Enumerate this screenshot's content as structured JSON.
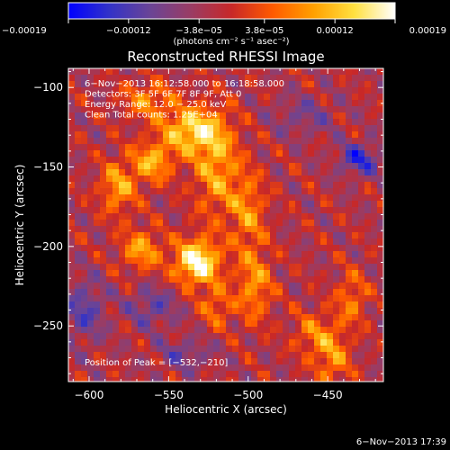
{
  "chart_data": {
    "type": "heatmap",
    "title": "Reconstructed RHESSI Image",
    "xlabel": "Heliocentric X (arcsec)",
    "ylabel": "Heliocentric Y (arcsec)",
    "xlim": [
      -613,
      -415
    ],
    "ylim": [
      -285,
      -88
    ],
    "xticks": [
      {
        "value": -600,
        "label": "−600"
      },
      {
        "value": -550,
        "label": "−550"
      },
      {
        "value": -500,
        "label": "−500"
      },
      {
        "value": -450,
        "label": "−450"
      }
    ],
    "yticks": [
      {
        "value": -100,
        "label": "−100"
      },
      {
        "value": -150,
        "label": "−150"
      },
      {
        "value": -200,
        "label": "−200"
      },
      {
        "value": -250,
        "label": "−250"
      }
    ],
    "colorbar": {
      "min": -0.00019,
      "max": 0.00019,
      "ticks": [
        {
          "value": -0.00019,
          "label": "−0.00019"
        },
        {
          "value": -0.00012,
          "label": "−0.00012"
        },
        {
          "value": -3.8e-05,
          "label": "−3.8e−05"
        },
        {
          "value": 3.8e-05,
          "label": "3.8e−05"
        },
        {
          "value": 0.00012,
          "label": "0.00012"
        },
        {
          "value": 0.00019,
          "label": "0.00019"
        }
      ],
      "units_label": "(photons cm⁻² s⁻¹ asec⁻²)",
      "colors": [
        "#0000ff",
        "#3232c8",
        "#6a4496",
        "#9a3c64",
        "#c82828",
        "#ff5a00",
        "#ffa000",
        "#ffe040",
        "#ffffff"
      ]
    },
    "info_lines": [
      "6−Nov−2013 16:12:58.000 to 16:18:58.000",
      "Detectors: 3F 5F 6F 7F 8F 9F, Att 0",
      "Energy Range: 12.0 − 25.0 keV",
      "Clean    Total counts: 1.25E+04"
    ],
    "peak": {
      "label": "Position of Peak = [−532,−210]",
      "x": -532,
      "y": -210
    },
    "timestamp": "6−Nov−2013 17:39",
    "sources": [
      {
        "x": -532,
        "y": -210,
        "amp": 1.0,
        "sx": 10,
        "sy": 10
      },
      {
        "x": -536,
        "y": -127,
        "amp": 0.75,
        "sx": 13,
        "sy": 10
      },
      {
        "x": -560,
        "y": -147,
        "amp": 0.6,
        "sx": 9,
        "sy": 9
      },
      {
        "x": -582,
        "y": -163,
        "amp": 0.55,
        "sx": 8,
        "sy": 12
      },
      {
        "x": -520,
        "y": -150,
        "amp": 0.55,
        "sx": 10,
        "sy": 22
      },
      {
        "x": -567,
        "y": -202,
        "amp": 0.55,
        "sx": 9,
        "sy": 9
      },
      {
        "x": -496,
        "y": -225,
        "amp": 0.5,
        "sx": 8,
        "sy": 16
      },
      {
        "x": -500,
        "y": -178,
        "amp": 0.45,
        "sx": 8,
        "sy": 18
      },
      {
        "x": -563,
        "y": -108,
        "amp": 0.45,
        "sx": 12,
        "sy": 8
      },
      {
        "x": -447,
        "y": -270,
        "amp": 0.45,
        "sx": 8,
        "sy": 14
      },
      {
        "x": -435,
        "y": -233,
        "amp": 0.4,
        "sx": 7,
        "sy": 12
      },
      {
        "x": -460,
        "y": -255,
        "amp": 0.35,
        "sx": 9,
        "sy": 10
      },
      {
        "x": -520,
        "y": -238,
        "amp": 0.4,
        "sx": 7,
        "sy": 9
      },
      {
        "x": -430,
        "y": -145,
        "amp": -0.55,
        "sx": 9,
        "sy": 7
      },
      {
        "x": -603,
        "y": -240,
        "amp": -0.4,
        "sx": 9,
        "sy": 14
      },
      {
        "x": -560,
        "y": -238,
        "amp": -0.35,
        "sx": 11,
        "sy": 9
      },
      {
        "x": -465,
        "y": -118,
        "amp": -0.25,
        "sx": 14,
        "sy": 9
      },
      {
        "x": -540,
        "y": -268,
        "amp": -0.3,
        "sx": 12,
        "sy": 7
      }
    ]
  }
}
